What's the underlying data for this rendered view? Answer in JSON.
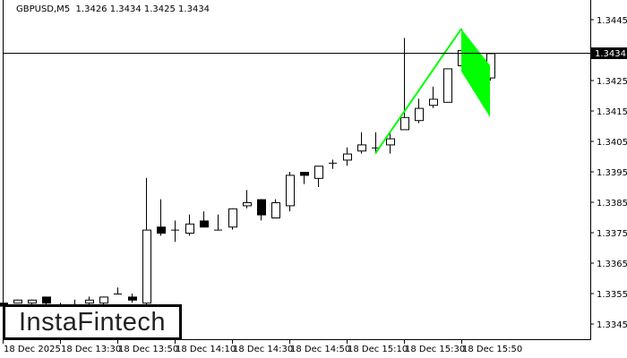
{
  "header": {
    "symbol": "GBPUSD,M5",
    "ohlc": "1.3426 1.3434 1.3425 1.3434"
  },
  "logo": {
    "text": "InstaFintech"
  },
  "colors": {
    "pattern": "#00ff00",
    "candle_up": "#ffffff",
    "candle_down": "#000000",
    "axis": "#000000"
  },
  "chart_data": {
    "type": "candlestick",
    "symbol": "GBPUSD",
    "timeframe": "M5",
    "ylim": [
      1.3339,
      1.3449
    ],
    "y_ticks": [
      "1.3445",
      "1.3425",
      "1.3415",
      "1.3405",
      "1.3395",
      "1.3385",
      "1.3375",
      "1.3365",
      "1.3355",
      "1.3345"
    ],
    "current_price": "1.3434",
    "x_tick_labels": [
      "18 Dec 2025",
      "18 Dec 13:30",
      "18 Dec 13:50",
      "18 Dec 14:10",
      "18 Dec 14:30",
      "18 Dec 14:50",
      "18 Dec 15:10",
      "18 Dec 15:30",
      "18 Dec 15:50"
    ],
    "x_tick_times": [
      "13:10",
      "13:30",
      "13:50",
      "14:10",
      "14:30",
      "14:50",
      "15:10",
      "15:30",
      "15:50"
    ],
    "candles": [
      {
        "t": "13:10",
        "o": 1.3352,
        "h": 1.3353,
        "l": 1.3351,
        "c": 1.3351
      },
      {
        "t": "13:15",
        "o": 1.3352,
        "h": 1.3353,
        "l": 1.3352,
        "c": 1.3353
      },
      {
        "t": "13:20",
        "o": 1.3352,
        "h": 1.3353,
        "l": 1.3351,
        "c": 1.3353
      },
      {
        "t": "13:25",
        "o": 1.3354,
        "h": 1.3354,
        "l": 1.3351,
        "c": 1.3352
      },
      {
        "t": "13:30",
        "o": 1.3351,
        "h": 1.3352,
        "l": 1.3351,
        "c": 1.3351
      },
      {
        "t": "13:35",
        "o": 1.3351,
        "h": 1.3353,
        "l": 1.3351,
        "c": 1.3351
      },
      {
        "t": "13:40",
        "o": 1.3352,
        "h": 1.3354,
        "l": 1.3351,
        "c": 1.3353
      },
      {
        "t": "13:45",
        "o": 1.3352,
        "h": 1.3354,
        "l": 1.3351,
        "c": 1.3354
      },
      {
        "t": "13:50",
        "o": 1.3355,
        "h": 1.3357,
        "l": 1.3355,
        "c": 1.3355
      },
      {
        "t": "13:55",
        "o": 1.3354,
        "h": 1.3355,
        "l": 1.3352,
        "c": 1.3353
      },
      {
        "t": "14:00",
        "o": 1.3352,
        "h": 1.3393,
        "l": 1.3351,
        "c": 1.3376
      },
      {
        "t": "14:05",
        "o": 1.3377,
        "h": 1.3386,
        "l": 1.3374,
        "c": 1.3375
      },
      {
        "t": "14:10",
        "o": 1.3376,
        "h": 1.3379,
        "l": 1.3372,
        "c": 1.3376
      },
      {
        "t": "14:15",
        "o": 1.3375,
        "h": 1.3381,
        "l": 1.3374,
        "c": 1.3378
      },
      {
        "t": "14:20",
        "o": 1.3379,
        "h": 1.3382,
        "l": 1.3377,
        "c": 1.3377
      },
      {
        "t": "14:25",
        "o": 1.3376,
        "h": 1.3381,
        "l": 1.3376,
        "c": 1.3376
      },
      {
        "t": "14:30",
        "o": 1.3377,
        "h": 1.3383,
        "l": 1.3376,
        "c": 1.3383
      },
      {
        "t": "14:35",
        "o": 1.3384,
        "h": 1.3389,
        "l": 1.3383,
        "c": 1.3385
      },
      {
        "t": "14:40",
        "o": 1.3386,
        "h": 1.3386,
        "l": 1.3379,
        "c": 1.3381
      },
      {
        "t": "14:45",
        "o": 1.338,
        "h": 1.3386,
        "l": 1.338,
        "c": 1.3385
      },
      {
        "t": "14:50",
        "o": 1.3384,
        "h": 1.3395,
        "l": 1.3382,
        "c": 1.3394
      },
      {
        "t": "14:55",
        "o": 1.3395,
        "h": 1.3395,
        "l": 1.3391,
        "c": 1.3394
      },
      {
        "t": "15:00",
        "o": 1.3393,
        "h": 1.3397,
        "l": 1.339,
        "c": 1.3397
      },
      {
        "t": "15:05",
        "o": 1.3398,
        "h": 1.3399,
        "l": 1.3396,
        "c": 1.3398
      },
      {
        "t": "15:10",
        "o": 1.3399,
        "h": 1.3403,
        "l": 1.3397,
        "c": 1.3401
      },
      {
        "t": "15:15",
        "o": 1.3402,
        "h": 1.3408,
        "l": 1.3401,
        "c": 1.3404
      },
      {
        "t": "15:20",
        "o": 1.3403,
        "h": 1.3408,
        "l": 1.3401,
        "c": 1.3403
      },
      {
        "t": "15:25",
        "o": 1.3404,
        "h": 1.3408,
        "l": 1.3401,
        "c": 1.3406
      },
      {
        "t": "15:30",
        "o": 1.3409,
        "h": 1.3439,
        "l": 1.3409,
        "c": 1.3413
      },
      {
        "t": "15:35",
        "o": 1.3412,
        "h": 1.3419,
        "l": 1.3411,
        "c": 1.3416
      },
      {
        "t": "15:40",
        "o": 1.3417,
        "h": 1.3423,
        "l": 1.3416,
        "c": 1.3419
      },
      {
        "t": "15:45",
        "o": 1.3418,
        "h": 1.3429,
        "l": 1.3418,
        "c": 1.3429
      },
      {
        "t": "15:50",
        "o": 1.343,
        "h": 1.3442,
        "l": 1.343,
        "c": 1.3435
      },
      {
        "t": "15:55",
        "o": 1.3434,
        "h": 1.3434,
        "l": 1.3425,
        "c": 1.3427
      },
      {
        "t": "16:00",
        "o": 1.3426,
        "h": 1.3434,
        "l": 1.3425,
        "c": 1.3434
      }
    ],
    "pattern": {
      "type": "bull flag",
      "pole": [
        {
          "t": "15:20",
          "p": 1.3401
        },
        {
          "t": "15:50",
          "p": 1.3442
        }
      ],
      "flag": [
        {
          "t": "15:50",
          "p": 1.3442
        },
        {
          "t": "16:00",
          "p": 1.343
        },
        {
          "t": "16:00",
          "p": 1.3413
        },
        {
          "t": "15:50",
          "p": 1.3428
        }
      ]
    }
  }
}
